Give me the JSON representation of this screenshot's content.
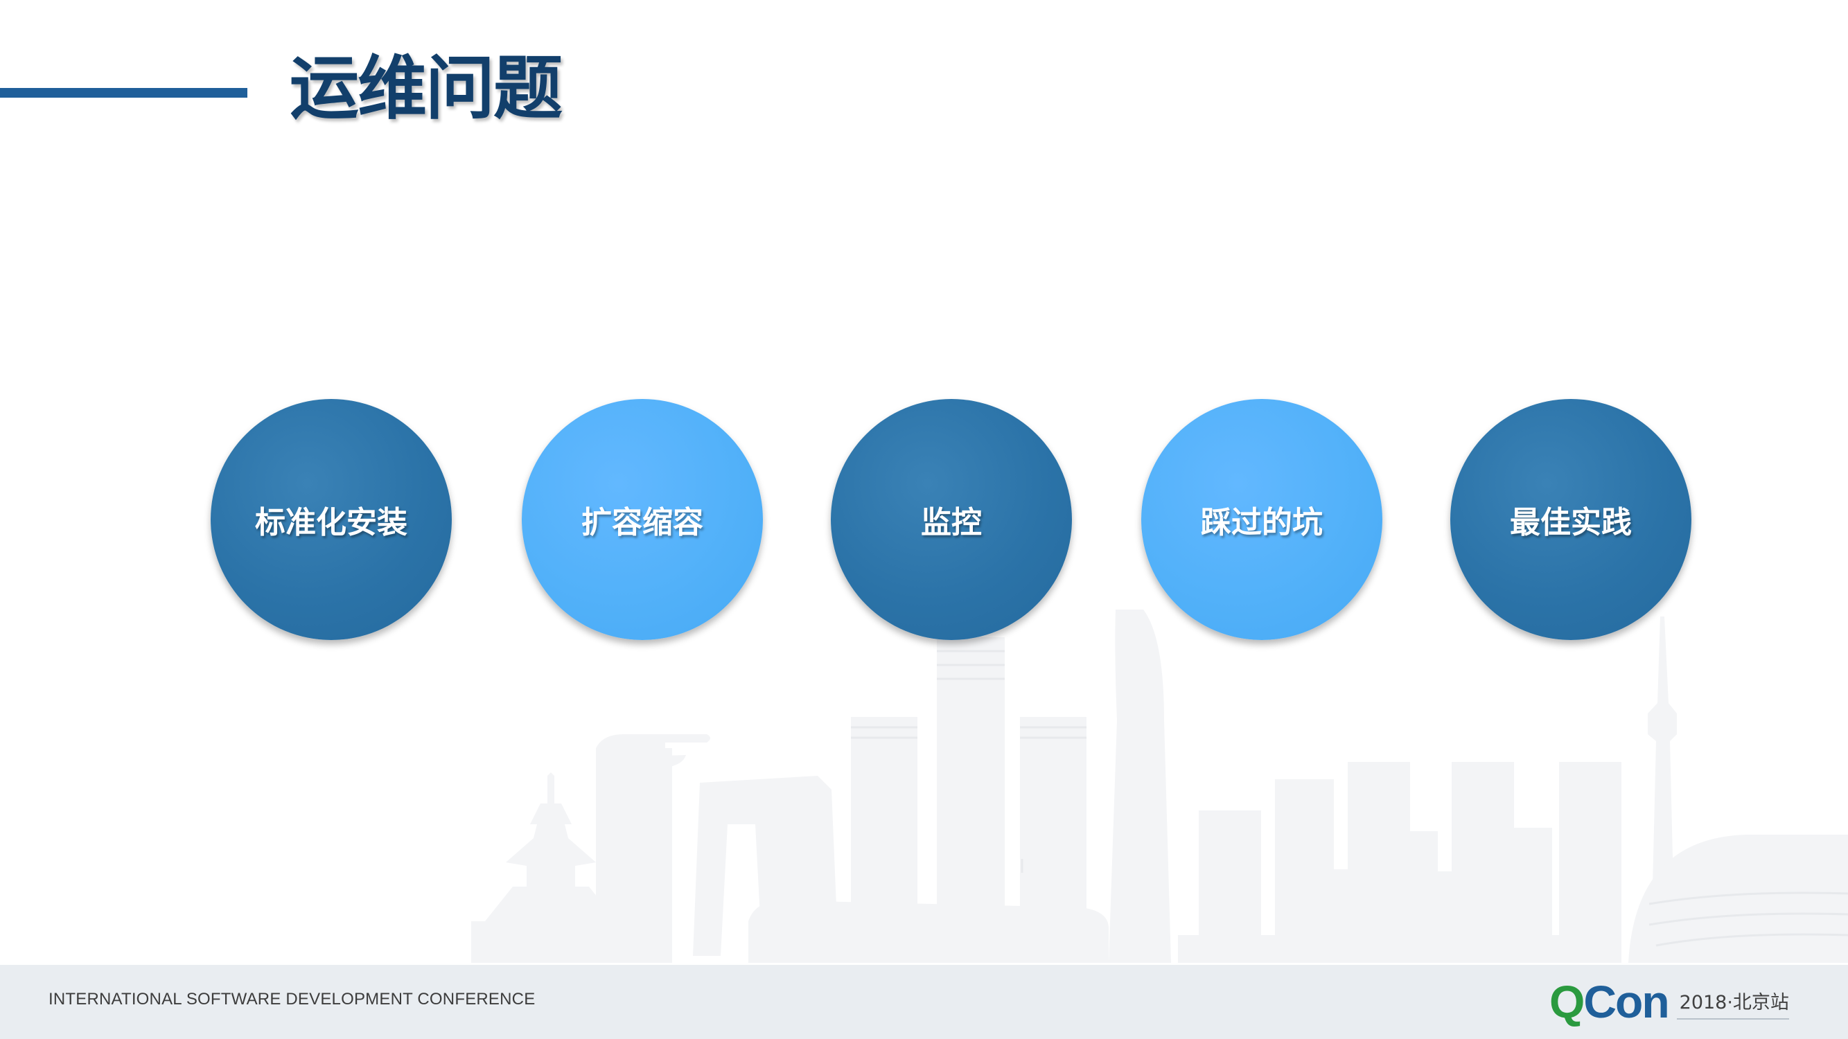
{
  "slide": {
    "title": "运维问题",
    "topics": [
      {
        "label": "标准化安装",
        "style": "dark"
      },
      {
        "label": "扩容缩容",
        "style": "light"
      },
      {
        "label": "监控",
        "style": "dark"
      },
      {
        "label": "踩过的坑",
        "style": "light"
      },
      {
        "label": "最佳实践",
        "style": "dark"
      }
    ]
  },
  "footer": {
    "conference_name": "INTERNATIONAL SOFTWARE DEVELOPMENT CONFERENCE",
    "brand": {
      "logo_q": "Q",
      "logo_con": "Con",
      "event": "2018·北京站"
    }
  },
  "colors": {
    "title": "#123f6b",
    "title_rule": "#1f5f9a",
    "circle_dark": "#2b73a8",
    "circle_light": "#52b1f9",
    "footer_bg": "#e9edf1",
    "logo_green": "#2a9a3f",
    "logo_blue": "#1f5f9a"
  }
}
